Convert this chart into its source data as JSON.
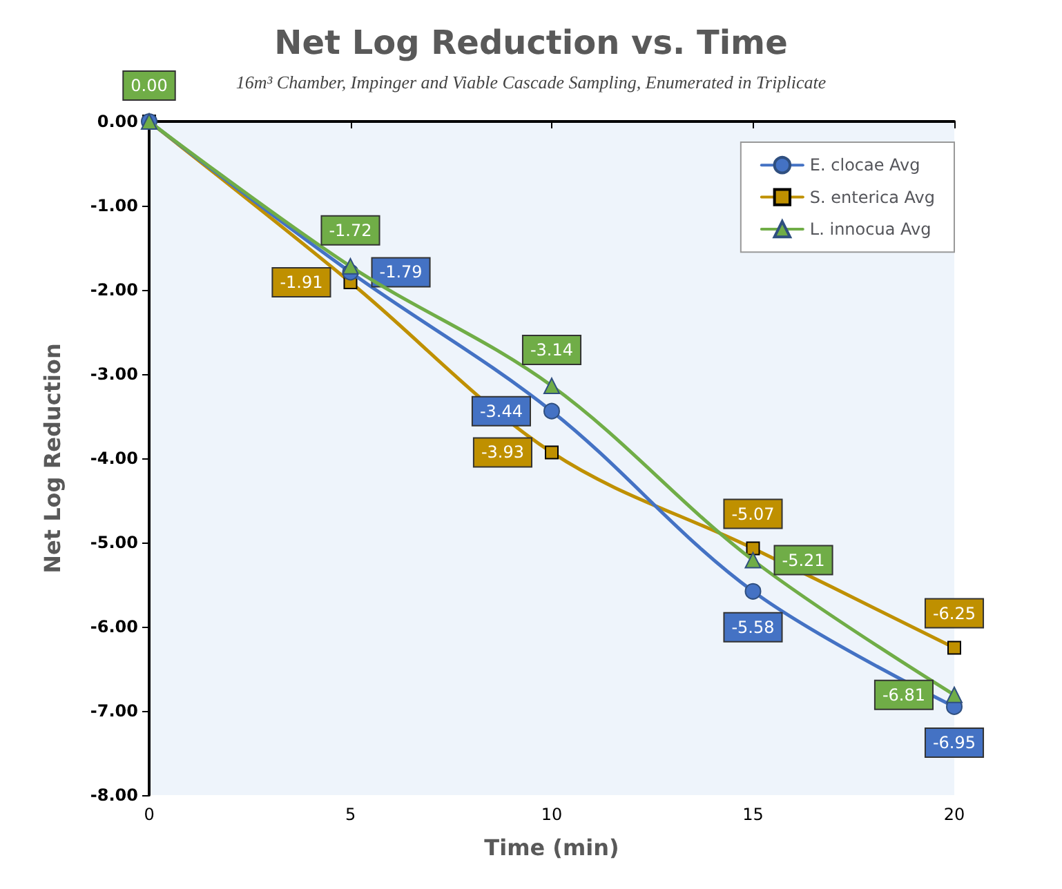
{
  "chart_data": {
    "type": "line",
    "title": "Net Log Reduction vs. Time",
    "subtitle": "16m³ Chamber, Impinger and Viable Cascade Sampling, Enumerated in Triplicate",
    "xlabel": "Time (min)",
    "ylabel": "Net Log Reduction",
    "x": [
      0,
      5,
      10,
      15,
      20
    ],
    "series": [
      {
        "name": "E. clocae Avg",
        "color": "#4472c4",
        "marker": "circle",
        "values": [
          0,
          -1.79,
          -3.44,
          -5.58,
          -6.95
        ],
        "value_labels": [
          null,
          "-1.79",
          "-3.44",
          "-5.58",
          "-6.95"
        ]
      },
      {
        "name": "S. enterica Avg",
        "color": "#bf9000",
        "marker": "square",
        "values": [
          0,
          -1.91,
          -3.93,
          -5.07,
          -6.25
        ],
        "value_labels": [
          null,
          "-1.91",
          "-3.93",
          "-5.07",
          "-6.25"
        ]
      },
      {
        "name": "L. innocua Avg",
        "color": "#70ad47",
        "marker": "triangle",
        "values": [
          0,
          -1.72,
          -3.14,
          -5.21,
          -6.81
        ],
        "value_labels": [
          "0.00",
          "-1.72",
          "-3.14",
          "-5.21",
          "-6.81"
        ]
      }
    ],
    "xlim": [
      0,
      20
    ],
    "xticks": [
      0,
      5,
      10,
      15,
      20
    ],
    "ylim": [
      -8,
      0
    ],
    "yticks": [
      {
        "value": -8,
        "label": "-8.00"
      },
      {
        "value": -7,
        "label": "-7.00"
      },
      {
        "value": -6,
        "label": "-6.00"
      },
      {
        "value": -5,
        "label": "-5.00"
      },
      {
        "value": -4,
        "label": "-4.00"
      },
      {
        "value": -3,
        "label": "-3.00"
      },
      {
        "value": -2,
        "label": "-2.00"
      },
      {
        "value": -1,
        "label": "-1.00"
      },
      {
        "value": 0,
        "label": "0.00"
      }
    ],
    "legend": "top right",
    "grid": false,
    "line_style": "solid"
  }
}
